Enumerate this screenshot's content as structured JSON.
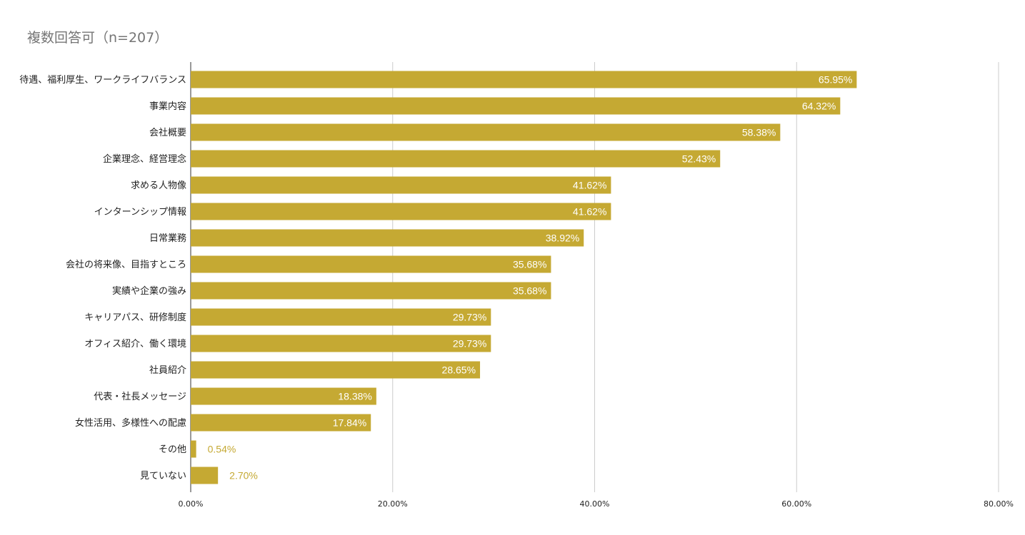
{
  "chart_data": {
    "type": "bar",
    "orientation": "horizontal",
    "title": "複数回答可（n=207）",
    "xlabel": "",
    "ylabel": "",
    "xlim": [
      0,
      80
    ],
    "x_ticks": [
      "0.00%",
      "20.00%",
      "40.00%",
      "60.00%",
      "80.00%"
    ],
    "x_tick_values": [
      0,
      20,
      40,
      60,
      80
    ],
    "grid": true,
    "bar_color": "#c5a933",
    "categories": [
      "待遇、福利厚生、ワークライフバランス",
      "事業内容",
      "会社概要",
      "企業理念、経営理念",
      "求める人物像",
      "インターンシップ情報",
      "日常業務",
      "会社の将来像、目指すところ",
      "実績や企業の強み",
      "キャリアパス、研修制度",
      "オフィス紹介、働く環境",
      "社員紹介",
      "代表・社長メッセージ",
      "女性活用、多様性への配慮",
      "その他",
      "見ていない"
    ],
    "values": [
      65.95,
      64.32,
      58.38,
      52.43,
      41.62,
      41.62,
      38.92,
      35.68,
      35.68,
      29.73,
      29.73,
      28.65,
      18.38,
      17.84,
      0.54,
      2.7
    ],
    "value_labels": [
      "65.95%",
      "64.32%",
      "58.38%",
      "52.43%",
      "41.62%",
      "41.62%",
      "38.92%",
      "35.68%",
      "35.68%",
      "29.73%",
      "29.73%",
      "28.65%",
      "18.38%",
      "17.84%",
      "0.54%",
      "2.70%"
    ]
  }
}
